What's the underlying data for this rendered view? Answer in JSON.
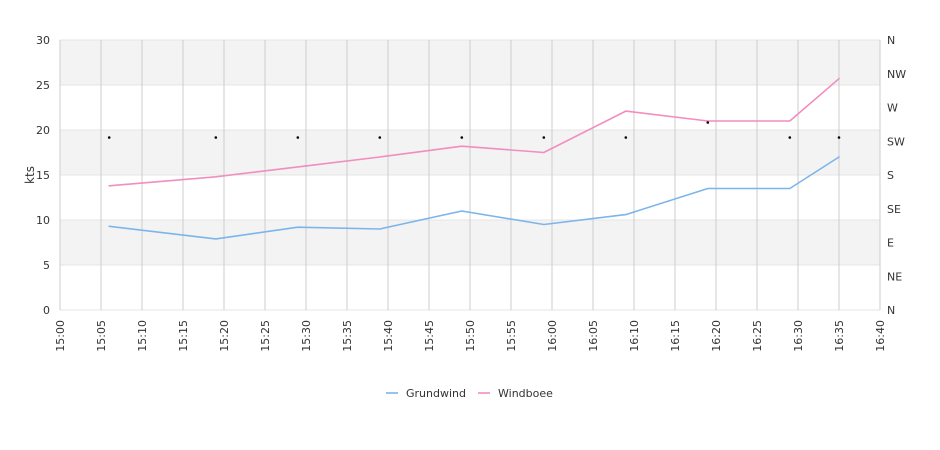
{
  "chart_data": {
    "type": "line",
    "ylabel": "kts",
    "ylim": [
      0,
      30
    ],
    "yticks": [
      "0",
      "5",
      "10",
      "15",
      "20",
      "25",
      "30"
    ],
    "xlim": [
      "15:00",
      "16:40"
    ],
    "xticks": [
      "15:00",
      "15:05",
      "15:10",
      "15:15",
      "15:20",
      "15:25",
      "15:30",
      "15:35",
      "15:40",
      "15:45",
      "15:50",
      "15:55",
      "16:00",
      "16:05",
      "16:10",
      "16:15",
      "16:20",
      "16:25",
      "16:30",
      "16:35",
      "16:40"
    ],
    "right_axis": {
      "labels": [
        "N",
        "NE",
        "E",
        "SE",
        "S",
        "SW",
        "W",
        "NW",
        "N"
      ],
      "range_degrees": [
        0,
        360
      ]
    },
    "grid": true,
    "legend_position": "bottom-center",
    "series": [
      {
        "name": "Grundwind",
        "color": "#7cb5ec",
        "x": [
          "15:06",
          "15:19",
          "15:29",
          "15:39",
          "15:49",
          "15:59",
          "16:09",
          "16:19",
          "16:29",
          "16:35"
        ],
        "values": [
          9.3,
          7.9,
          9.2,
          9.0,
          11.0,
          9.5,
          10.6,
          13.5,
          13.5,
          17.0
        ]
      },
      {
        "name": "Windboee",
        "color": "#f38cbf",
        "x": [
          "15:06",
          "15:19",
          "15:29",
          "15:39",
          "15:49",
          "15:59",
          "16:09",
          "16:19",
          "16:29",
          "16:35"
        ],
        "values": [
          13.8,
          14.8,
          15.9,
          17.0,
          18.2,
          17.5,
          22.1,
          21.0,
          21.0,
          25.7
        ]
      },
      {
        "name": "Direction",
        "color": "#000000",
        "marker": "dot",
        "x": [
          "15:06",
          "15:19",
          "15:29",
          "15:39",
          "15:49",
          "15:59",
          "16:09",
          "16:19",
          "16:29",
          "16:35"
        ],
        "values_degrees": [
          230,
          230,
          230,
          230,
          230,
          230,
          230,
          250,
          230,
          230
        ]
      }
    ]
  }
}
